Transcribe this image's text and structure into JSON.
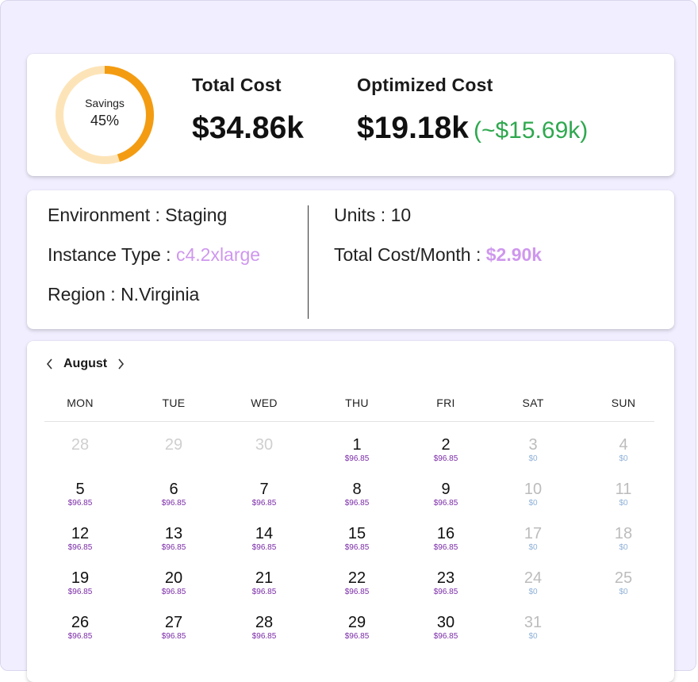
{
  "summary": {
    "savings_label": "Savings",
    "savings_percent_text": "45%",
    "savings_fraction": 0.45,
    "colors": {
      "ring_fill": "#f39c12",
      "ring_track": "#fde4b8"
    },
    "total_cost_label": "Total Cost",
    "total_cost_value": "$34.86k",
    "optimized_cost_label": "Optimized Cost",
    "optimized_cost_value": "$19.18k",
    "optimized_saving": "(~$15.69k)"
  },
  "details": {
    "environment_label": "Environment : ",
    "environment_value": "Staging",
    "instance_type_label": "Instance Type : ",
    "instance_type_value": "c4.2xlarge",
    "region_label": "Region : ",
    "region_value": "N.Virginia",
    "units_label": "Units : ",
    "units_value": "10",
    "total_cost_month_label": "Total Cost/Month : ",
    "total_cost_month_value": "$2.90k"
  },
  "calendar": {
    "month": "August",
    "weekdays": [
      "MON",
      "TUE",
      "WED",
      "THU",
      "FRI",
      "SAT",
      "SUN"
    ],
    "weeks": [
      [
        {
          "day": "28",
          "cost": "",
          "muted": true
        },
        {
          "day": "29",
          "cost": "",
          "muted": true
        },
        {
          "day": "30",
          "cost": "",
          "muted": true
        },
        {
          "day": "1",
          "cost": "$96.85"
        },
        {
          "day": "2",
          "cost": "$96.85"
        },
        {
          "day": "3",
          "cost": "$0",
          "weekend": true
        },
        {
          "day": "4",
          "cost": "$0",
          "weekend": true
        }
      ],
      [
        {
          "day": "5",
          "cost": "$96.85"
        },
        {
          "day": "6",
          "cost": "$96.85"
        },
        {
          "day": "7",
          "cost": "$96.85"
        },
        {
          "day": "8",
          "cost": "$96.85"
        },
        {
          "day": "9",
          "cost": "$96.85"
        },
        {
          "day": "10",
          "cost": "$0",
          "weekend": true
        },
        {
          "day": "11",
          "cost": "$0",
          "weekend": true
        }
      ],
      [
        {
          "day": "12",
          "cost": "$96.85"
        },
        {
          "day": "13",
          "cost": "$96.85"
        },
        {
          "day": "14",
          "cost": "$96.85"
        },
        {
          "day": "15",
          "cost": "$96.85"
        },
        {
          "day": "16",
          "cost": "$96.85"
        },
        {
          "day": "17",
          "cost": "$0",
          "weekend": true
        },
        {
          "day": "18",
          "cost": "$0",
          "weekend": true
        }
      ],
      [
        {
          "day": "19",
          "cost": "$96.85"
        },
        {
          "day": "20",
          "cost": "$96.85"
        },
        {
          "day": "21",
          "cost": "$96.85"
        },
        {
          "day": "22",
          "cost": "$96.85"
        },
        {
          "day": "23",
          "cost": "$96.85"
        },
        {
          "day": "24",
          "cost": "$0",
          "weekend": true
        },
        {
          "day": "25",
          "cost": "$0",
          "weekend": true
        }
      ],
      [
        {
          "day": "26",
          "cost": "$96.85"
        },
        {
          "day": "27",
          "cost": "$96.85"
        },
        {
          "day": "28",
          "cost": "$96.85"
        },
        {
          "day": "29",
          "cost": "$96.85"
        },
        {
          "day": "30",
          "cost": "$96.85"
        },
        {
          "day": "31",
          "cost": "$0",
          "weekend": true
        }
      ]
    ]
  }
}
